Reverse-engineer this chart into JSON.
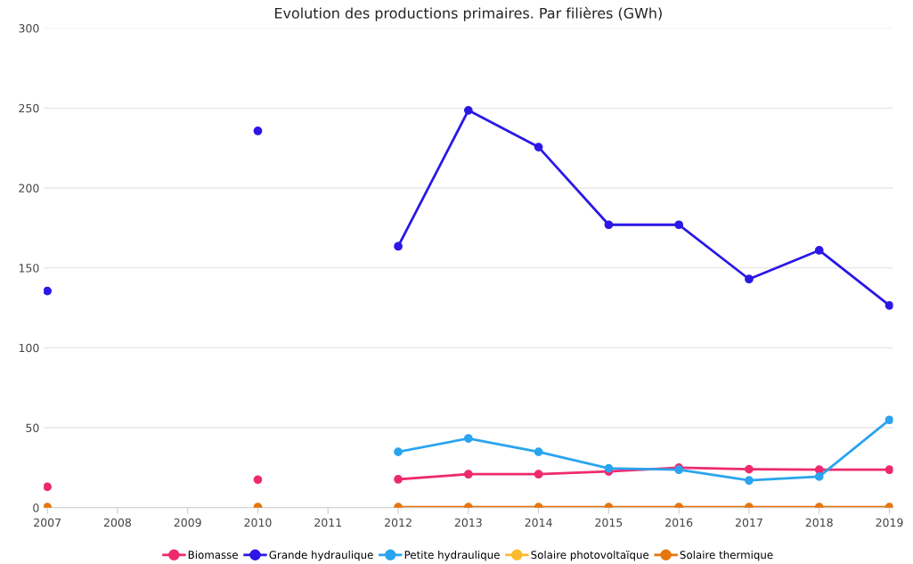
{
  "chart_data": {
    "type": "line",
    "title": "Evolution des productions primaires. Par filières (GWh)",
    "categories": [
      "2007",
      "2008",
      "2009",
      "2010",
      "2011",
      "2012",
      "2013",
      "2014",
      "2015",
      "2016",
      "2017",
      "2018",
      "2019"
    ],
    "series": [
      {
        "name": "Biomasse",
        "color": "#ee2a6f",
        "values": [
          13,
          null,
          null,
          17.5,
          null,
          17.7,
          20.9,
          20.9,
          22.6,
          25,
          24,
          23.7,
          23.7
        ]
      },
      {
        "name": "Grande hydraulique",
        "color": "#2b18e6",
        "values": [
          135.5,
          null,
          null,
          235.7,
          null,
          163.5,
          248.6,
          225.6,
          177,
          177,
          143,
          161,
          126.5
        ]
      },
      {
        "name": "Petite hydraulique",
        "color": "#2aa4ee",
        "values": [
          null,
          null,
          null,
          null,
          null,
          34.9,
          43.3,
          34.9,
          24.6,
          23.7,
          17,
          19.4,
          54.9
        ]
      },
      {
        "name": "Solaire photovoltaïque",
        "color": "#fbbb2c",
        "values": [
          null,
          null,
          null,
          null,
          null,
          null,
          null,
          null,
          null,
          null,
          null,
          null,
          null
        ]
      },
      {
        "name": "Solaire thermique",
        "color": "#e7750d",
        "values": [
          0.3,
          null,
          null,
          0.3,
          null,
          0.3,
          0.3,
          0.3,
          0.3,
          0.3,
          0.3,
          0.3,
          0.3
        ]
      }
    ],
    "ylim": [
      0,
      300
    ],
    "yticks": [
      0,
      50,
      100,
      150,
      200,
      250,
      300
    ],
    "grid": "y",
    "legend": "bottom",
    "marker": "circle",
    "line_style": "solid"
  }
}
